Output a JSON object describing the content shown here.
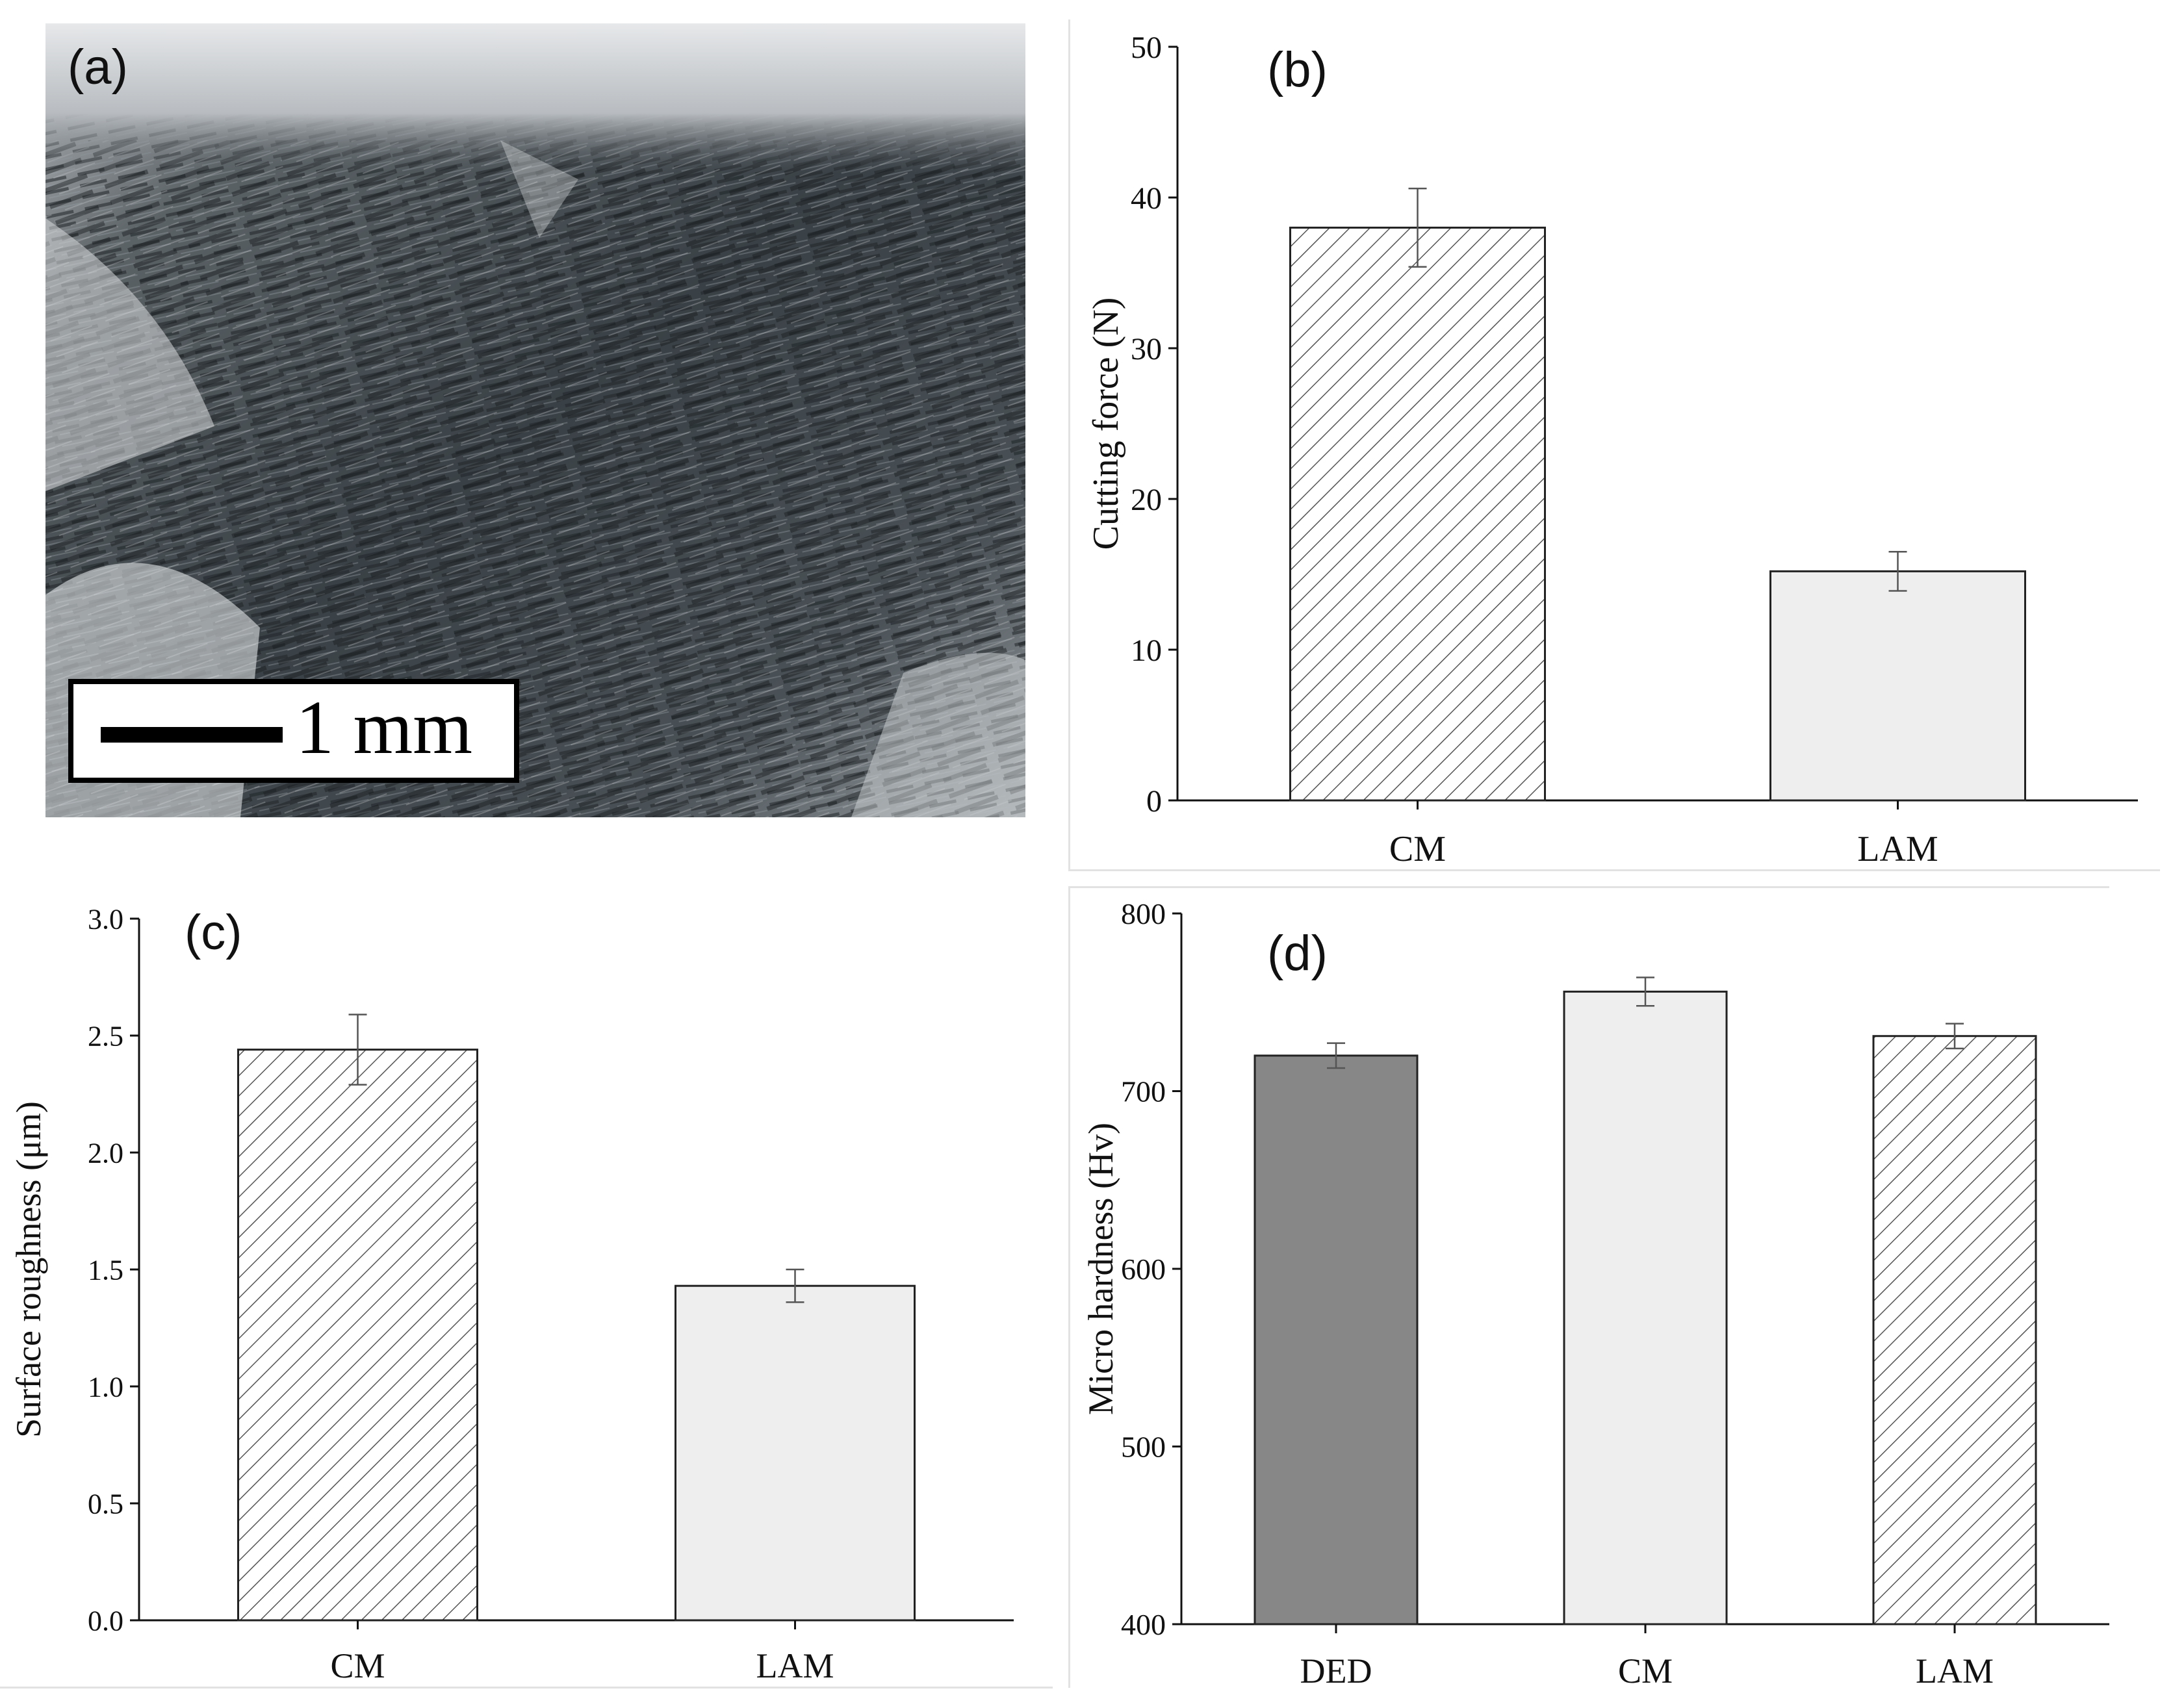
{
  "panels": {
    "a": {
      "label": "(a)",
      "scale_bar": "1 mm"
    },
    "b": {
      "label": "(b)"
    },
    "c": {
      "label": "(c)"
    },
    "d": {
      "label": "(d)"
    }
  },
  "colors": {
    "hatched_fill": "#ffffff",
    "hatch_stroke": "#555555",
    "light_fill": "#eeeeee",
    "dark_fill": "#878787",
    "axis": "#111111"
  },
  "chart_data": [
    {
      "panel": "b",
      "type": "bar",
      "categories": [
        "CM",
        "LAM"
      ],
      "values": [
        38.0,
        15.2
      ],
      "errors": [
        2.6,
        1.3
      ],
      "styles": [
        "hatched",
        "light"
      ],
      "ylabel": "Cutting force (N)",
      "xlabel": "",
      "ylim": [
        0,
        50
      ],
      "yticks": [
        0,
        10,
        20,
        30,
        40,
        50
      ],
      "ytick_labels": [
        "0",
        "10",
        "20",
        "30",
        "40",
        "50"
      ],
      "grid": false
    },
    {
      "panel": "c",
      "type": "bar",
      "categories": [
        "CM",
        "LAM"
      ],
      "values": [
        2.44,
        1.43
      ],
      "errors": [
        0.15,
        0.07
      ],
      "styles": [
        "hatched",
        "light"
      ],
      "ylabel": "Surface roughness (μm)",
      "xlabel": "",
      "ylim": [
        0,
        3.0
      ],
      "yticks": [
        0,
        0.5,
        1.0,
        1.5,
        2.0,
        2.5,
        3.0
      ],
      "ytick_labels": [
        "0.0",
        "0.5",
        "1.0",
        "1.5",
        "2.0",
        "2.5",
        "3.0"
      ],
      "grid": false
    },
    {
      "panel": "d",
      "type": "bar",
      "categories": [
        "DED",
        "CM",
        "LAM"
      ],
      "values": [
        720,
        756,
        731
      ],
      "errors": [
        7,
        8,
        7
      ],
      "styles": [
        "dark",
        "light",
        "hatched"
      ],
      "ylabel": "Micro hardness (Hv)",
      "xlabel": "",
      "ylim": [
        400,
        800
      ],
      "yticks": [
        400,
        500,
        600,
        700,
        800
      ],
      "ytick_labels": [
        "400",
        "500",
        "600",
        "700",
        "800"
      ],
      "grid": false
    }
  ]
}
